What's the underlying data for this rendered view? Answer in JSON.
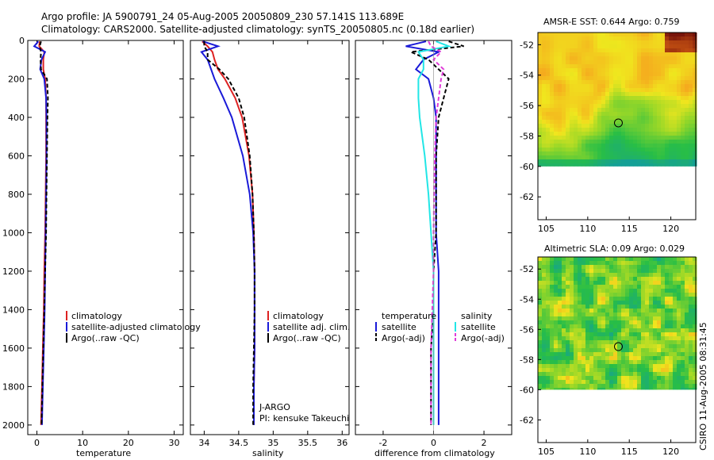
{
  "header": {
    "line1": "Argo profile: JA 5900791_24 05-Aug-2005 20050809_230 57.141S 113.689E",
    "line2": "Climatology: CARS2000. Satellite-adjusted climatology: synTS_20050805.nc (0.18d earlier)"
  },
  "colors": {
    "climatology": "#dd2222",
    "satellite": "#1a1ad8",
    "argo": "#000000",
    "satellite_salinity": "#22e6e6",
    "argo_adj_salinity": "#e03ad8"
  },
  "chart_data": [
    {
      "type": "line",
      "id": "temperature-panel",
      "xlabel": "temperature",
      "ylabel": "",
      "xlim": [
        -2,
        32
      ],
      "ylim": [
        2050,
        0
      ],
      "xticks": [
        "0",
        "10",
        "20",
        "30"
      ],
      "yticks": [
        "0",
        "200",
        "400",
        "600",
        "800",
        "1000",
        "1200",
        "1400",
        "1600",
        "1800",
        "2000"
      ],
      "depth": [
        5,
        30,
        60,
        100,
        150,
        200,
        300,
        400,
        600,
        800,
        1000,
        1200,
        1400,
        1600,
        1800,
        2000
      ],
      "series": [
        {
          "name": "climatology",
          "values": [
            0.6,
            0.5,
            1.6,
            1.4,
            1.4,
            1.8,
            2.0,
            2.0,
            2.0,
            1.9,
            1.8,
            1.6,
            1.5,
            1.3,
            1.1,
            0.9
          ]
        },
        {
          "name": "satellite-adjusted climatology",
          "values": [
            0.3,
            -0.6,
            1.8,
            1.0,
            0.7,
            1.6,
            2.0,
            2.1,
            2.1,
            2.0,
            1.9,
            1.8,
            1.7,
            1.5,
            1.3,
            1.1
          ]
        },
        {
          "name": "Argo(..raw -QC)",
          "values": [
            0.9,
            0.6,
            0.9,
            0.8,
            0.9,
            2.2,
            2.4,
            2.3,
            2.2,
            2.1,
            2.0,
            1.8,
            1.6,
            1.4,
            1.2,
            1.0
          ]
        }
      ],
      "legend": [
        "climatology",
        "satellite-adjusted climatology",
        "Argo(..raw -QC)"
      ],
      "legend_position": "lower-right"
    },
    {
      "type": "line",
      "id": "salinity-panel",
      "xlabel": "salinity",
      "xlim": [
        33.8,
        36.1
      ],
      "ylim": [
        2050,
        0
      ],
      "xticks": [
        "34",
        "34.5",
        "35",
        "35.5",
        "36"
      ],
      "depth": [
        5,
        30,
        60,
        100,
        150,
        200,
        300,
        400,
        600,
        800,
        1000,
        1200,
        1400,
        1600,
        1800,
        2000
      ],
      "series": [
        {
          "name": "climatology",
          "values": [
            33.97,
            34.05,
            34.12,
            34.15,
            34.2,
            34.3,
            34.45,
            34.55,
            34.65,
            34.7,
            34.72,
            34.73,
            34.73,
            34.73,
            34.72,
            34.72
          ]
        },
        {
          "name": "satellite adj. clim.",
          "values": [
            33.98,
            34.2,
            33.96,
            34.05,
            34.1,
            34.15,
            34.28,
            34.4,
            34.56,
            34.66,
            34.71,
            34.73,
            34.73,
            34.73,
            34.72,
            34.72
          ]
        },
        {
          "name": "Argo(..raw -QC)",
          "values": [
            34.0,
            34.0,
            34.05,
            34.05,
            34.22,
            34.35,
            34.5,
            34.58,
            34.66,
            34.7,
            34.72,
            34.73,
            34.73,
            34.72,
            34.71,
            34.71
          ]
        }
      ],
      "legend": [
        "climatology",
        "satellite adj. clim.",
        "Argo(..raw -QC)"
      ],
      "legend_position": "lower-right",
      "annotations": [
        "J-ARGO",
        "PI: kensuke Takeuchi"
      ]
    },
    {
      "type": "line",
      "id": "difference-panel",
      "xlabel": "difference from climatology",
      "xlim": [
        -3.1,
        3.1
      ],
      "ylim": [
        2050,
        0
      ],
      "xticks": [
        "-2",
        "0",
        "2"
      ],
      "depth": [
        5,
        30,
        60,
        100,
        150,
        200,
        300,
        400,
        600,
        800,
        1000,
        1200,
        1400,
        1600,
        1800,
        2000
      ],
      "series": [
        {
          "group": "temperature",
          "name": "satellite",
          "values": [
            -0.3,
            -1.1,
            0.2,
            -0.4,
            -0.7,
            -0.2,
            0.0,
            0.1,
            0.1,
            0.1,
            0.1,
            0.2,
            0.2,
            0.2,
            0.2,
            0.2
          ]
        },
        {
          "group": "temperature",
          "name": "Argo(-adj)",
          "values": [
            0.6,
            1.2,
            -0.9,
            -0.2,
            0.2,
            0.6,
            0.4,
            0.2,
            0.1,
            0.1,
            0.1,
            0.0,
            0.0,
            -0.1,
            -0.1,
            -0.1
          ]
        },
        {
          "group": "salinity",
          "name": "satellite",
          "values": [
            0.1,
            0.6,
            -0.6,
            -0.4,
            -0.4,
            -0.6,
            -0.6,
            -0.55,
            -0.35,
            -0.2,
            -0.1,
            0.0,
            0.0,
            0.0,
            0.0,
            0.0
          ]
        },
        {
          "group": "salinity",
          "name": "Argo(-adj)",
          "values": [
            -0.2,
            -0.1,
            0.3,
            0.0,
            0.4,
            0.3,
            0.2,
            0.1,
            0.05,
            0.02,
            0.0,
            0.0,
            -0.05,
            -0.1,
            -0.1,
            -0.1
          ]
        }
      ],
      "legend_headers": [
        "temperature",
        "salinity"
      ],
      "legend": [
        "satellite",
        "Argo(-adj)",
        "satellite",
        "Argo(-adj)"
      ],
      "legend_position": "lower-center"
    },
    {
      "type": "heatmap",
      "id": "sst-map",
      "title": "AMSR-E SST: 0.644 Argo: 0.759",
      "xlim": [
        104,
        123
      ],
      "ylim": [
        -63.5,
        -51.2
      ],
      "xticks": [
        "105",
        "110",
        "115",
        "120"
      ],
      "yticks": [
        "-52",
        "-54",
        "-56",
        "-58",
        "-60",
        "-62"
      ],
      "data_bottom_lat": -60,
      "marker": {
        "lon": 113.689,
        "lat": -57.141
      }
    },
    {
      "type": "heatmap",
      "id": "sla-map",
      "title": "Altimetric SLA: 0.09 Argo: 0.029",
      "xlim": [
        104,
        123
      ],
      "ylim": [
        -63.5,
        -51.2
      ],
      "xticks": [
        "105",
        "110",
        "115",
        "120"
      ],
      "yticks": [
        "-52",
        "-54",
        "-56",
        "-58",
        "-60",
        "-62"
      ],
      "data_bottom_lat": -60,
      "marker": {
        "lon": 113.689,
        "lat": -57.141
      }
    }
  ],
  "credit": "CSIRO 11-Aug-2005 08:31:45"
}
